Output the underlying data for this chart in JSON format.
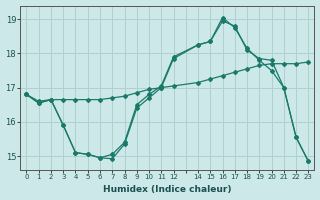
{
  "xlabel": "Humidex (Indice chaleur)",
  "bg_color": "#cde8e8",
  "grid_color": "#b0d0d0",
  "line_color": "#1a7a6a",
  "xlim": [
    -0.5,
    23.5
  ],
  "ylim": [
    14.6,
    19.4
  ],
  "yticks": [
    15,
    16,
    17,
    18,
    19
  ],
  "xtick_positions": [
    0,
    1,
    2,
    3,
    4,
    5,
    6,
    7,
    8,
    9,
    10,
    11,
    12,
    13,
    14,
    15,
    16,
    17,
    18,
    19,
    20,
    21,
    22,
    23
  ],
  "xtick_labels": [
    "0",
    "1",
    "2",
    "3",
    "4",
    "5",
    "6",
    "7",
    "8",
    "9",
    "10",
    "11",
    "12",
    "",
    "14",
    "15",
    "16",
    "17",
    "18",
    "19",
    "20",
    "21",
    "22",
    "23"
  ],
  "series1_x": [
    0,
    1,
    2,
    3,
    4,
    5,
    6,
    7,
    8,
    9,
    10,
    11,
    12,
    14,
    15,
    16,
    17,
    18,
    19,
    20,
    21,
    22,
    23
  ],
  "series1_y": [
    16.8,
    16.6,
    16.65,
    16.65,
    16.65,
    16.65,
    16.65,
    16.7,
    16.75,
    16.85,
    16.95,
    17.0,
    17.05,
    17.15,
    17.25,
    17.35,
    17.45,
    17.55,
    17.65,
    17.7,
    17.7,
    17.7,
    17.75
  ],
  "series2_x": [
    0,
    1,
    2,
    3,
    4,
    5,
    6,
    7,
    8,
    9,
    10,
    11,
    12,
    14,
    15,
    16,
    17,
    18,
    19,
    20,
    21,
    22,
    23
  ],
  "series2_y": [
    16.8,
    16.55,
    16.65,
    15.9,
    15.1,
    15.05,
    14.95,
    15.05,
    15.4,
    16.5,
    16.8,
    17.05,
    17.9,
    18.25,
    18.35,
    18.95,
    18.8,
    18.1,
    17.85,
    17.8,
    17.0,
    15.55,
    14.85
  ],
  "series3_x": [
    0,
    1,
    2,
    3,
    4,
    5,
    6,
    7,
    8,
    9,
    10,
    11,
    12,
    14,
    15,
    16,
    17,
    18,
    19,
    20,
    21,
    22,
    23
  ],
  "series3_y": [
    16.8,
    16.55,
    16.65,
    15.9,
    15.1,
    15.05,
    14.95,
    14.92,
    15.35,
    16.4,
    16.7,
    17.0,
    17.85,
    18.25,
    18.35,
    19.05,
    18.75,
    18.15,
    17.8,
    17.5,
    17.0,
    15.55,
    14.85
  ]
}
